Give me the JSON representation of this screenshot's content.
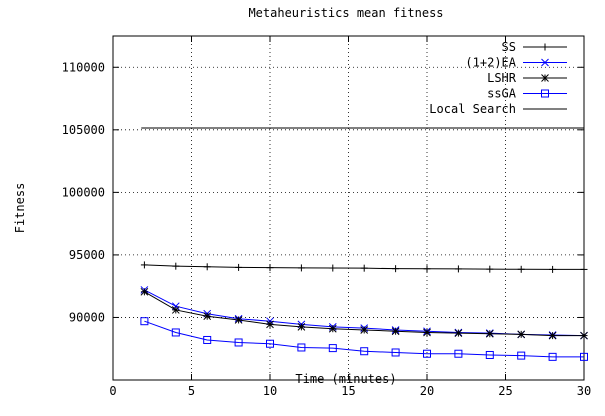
{
  "chart_data": {
    "type": "line",
    "title": "Metaheuristics mean fitness",
    "xlabel": "Time (minutes)",
    "ylabel": "Fitness",
    "xlim": [
      0,
      30
    ],
    "ylim": [
      85000,
      112500
    ],
    "xticks": [
      0,
      5,
      10,
      15,
      20,
      25,
      30
    ],
    "yticks": [
      90000,
      95000,
      100000,
      105000,
      110000
    ],
    "grid": true,
    "legend_position": "top-right",
    "series": [
      {
        "name": "SS",
        "color": "#000000",
        "marker": "plus",
        "x": [
          2,
          4,
          6,
          8,
          10,
          12,
          14,
          16,
          18,
          20,
          22,
          24,
          26,
          28,
          30
        ],
        "y": [
          94200,
          94100,
          94050,
          94000,
          93980,
          93960,
          93950,
          93940,
          93900,
          93890,
          93880,
          93860,
          93850,
          93840,
          93840
        ]
      },
      {
        "name": "(1+2)EA",
        "color": "#0000ff",
        "marker": "cross",
        "x": [
          2,
          4,
          6,
          8,
          10,
          12,
          14,
          16,
          18,
          20,
          22,
          24,
          26,
          28,
          30
        ],
        "y": [
          92200,
          90900,
          90300,
          89900,
          89700,
          89450,
          89250,
          89150,
          89000,
          88900,
          88800,
          88750,
          88650,
          88600,
          88550
        ]
      },
      {
        "name": "LSHR",
        "color": "#000000",
        "marker": "star",
        "x": [
          2,
          4,
          6,
          8,
          10,
          12,
          14,
          16,
          18,
          20,
          22,
          24,
          26,
          28,
          30
        ],
        "y": [
          92050,
          90600,
          90100,
          89800,
          89450,
          89250,
          89100,
          89000,
          88900,
          88800,
          88750,
          88700,
          88650,
          88550,
          88550
        ]
      },
      {
        "name": "ssGA",
        "color": "#0000ff",
        "marker": "square",
        "x": [
          2,
          4,
          6,
          8,
          10,
          12,
          14,
          16,
          18,
          20,
          22,
          24,
          26,
          28,
          30
        ],
        "y": [
          89700,
          88800,
          88200,
          88000,
          87900,
          87600,
          87550,
          87300,
          87200,
          87100,
          87100,
          87000,
          86950,
          86850,
          86850
        ]
      },
      {
        "name": "Local Search",
        "color": "#000000",
        "marker": "none",
        "x": [
          1.8,
          30
        ],
        "y": [
          105150,
          105150
        ]
      }
    ]
  }
}
